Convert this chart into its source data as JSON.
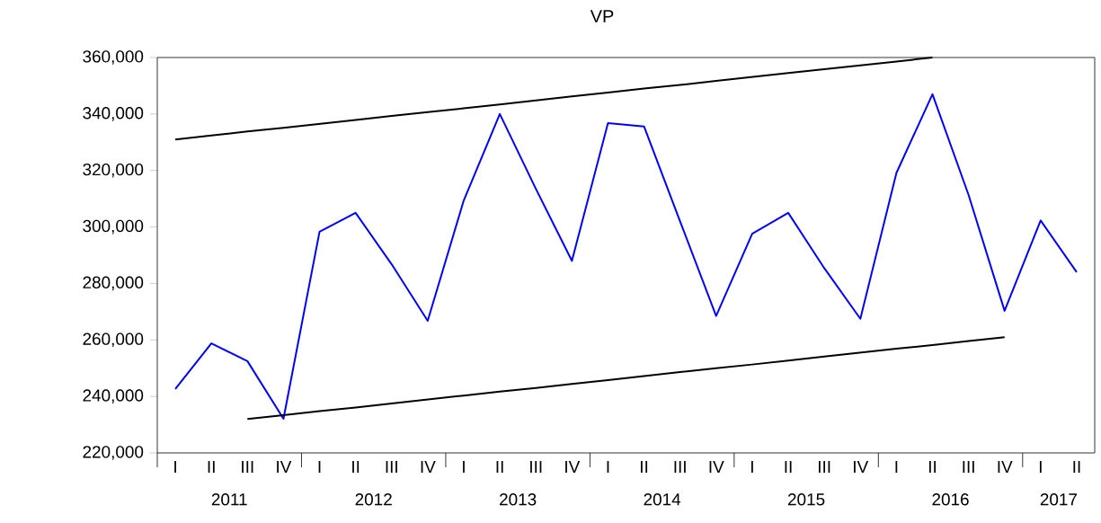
{
  "chart_data": {
    "type": "line",
    "title": "VP",
    "categories": [
      "I",
      "II",
      "III",
      "IV",
      "I",
      "II",
      "III",
      "IV",
      "I",
      "II",
      "III",
      "IV",
      "I",
      "II",
      "III",
      "IV",
      "I",
      "II",
      "III",
      "IV",
      "I",
      "II",
      "III",
      "IV",
      "I",
      "II"
    ],
    "annotations": [
      "2011",
      "2012",
      "2013",
      "2014",
      "2015",
      "2016",
      "2017"
    ],
    "series": [
      {
        "color": "#0000ff",
        "values": [
          242600,
          258800,
          252500,
          232100,
          298300,
          305000,
          286800,
          266800,
          309400,
          340000,
          313500,
          288000,
          336800,
          335600,
          302000,
          268500,
          297600,
          305000,
          285400,
          267500,
          319100,
          347000,
          311400,
          270300,
          302300,
          284000
        ]
      },
      {
        "color": "#000000",
        "values": [
          331000,
          332400,
          333800,
          335100,
          336500,
          337900,
          339300,
          340700,
          342000,
          343400,
          344800,
          346200,
          347600,
          349000,
          350300,
          351700,
          353100,
          354500,
          355900,
          357200,
          358600,
          360000,
          null,
          null,
          null,
          null
        ]
      },
      {
        "color": "#000000",
        "values": [
          null,
          null,
          232000,
          233400,
          234800,
          236100,
          237500,
          238900,
          240300,
          241700,
          243000,
          244400,
          245800,
          247200,
          248600,
          250000,
          251300,
          252700,
          254100,
          255500,
          256900,
          258200,
          259600,
          261000,
          null,
          null
        ]
      }
    ],
    "ylim": [
      220000,
      360000
    ],
    "yticks": [
      {
        "value": 220000,
        "label": "220,000"
      },
      {
        "value": 240000,
        "label": "240,000"
      },
      {
        "value": 260000,
        "label": "260,000"
      },
      {
        "value": 280000,
        "label": "280,000"
      },
      {
        "value": 300000,
        "label": "300,000"
      },
      {
        "value": 320000,
        "label": "320,000"
      },
      {
        "value": 340000,
        "label": "340,000"
      },
      {
        "value": 360000,
        "label": "360,000"
      }
    ],
    "grid": false,
    "marker": "none",
    "line_style": "solid"
  }
}
